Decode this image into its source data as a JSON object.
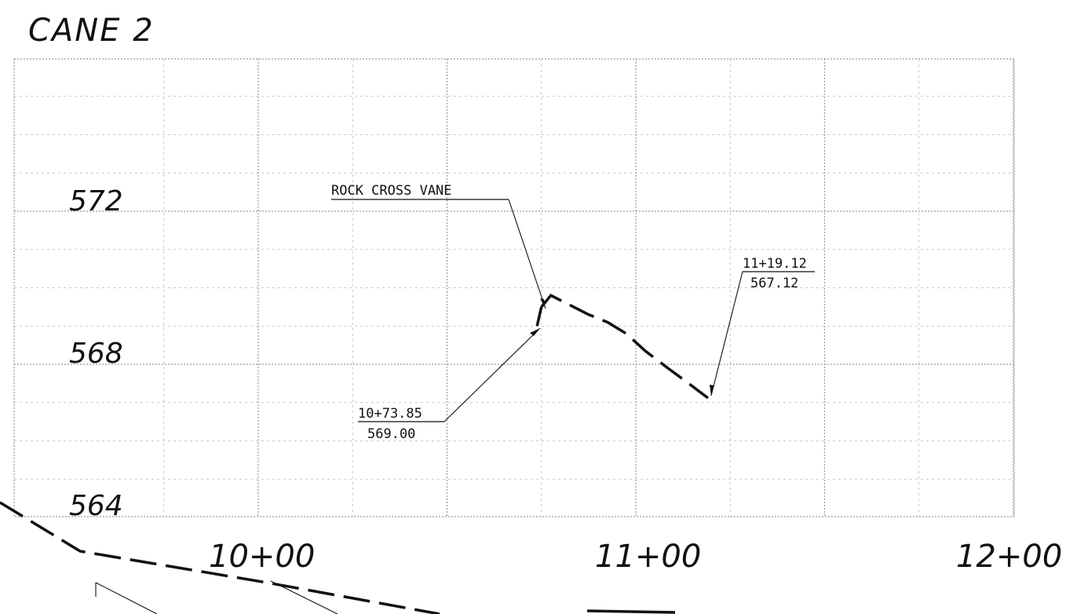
{
  "title": "CANE 2",
  "elevation_labels": [
    "572",
    "568",
    "564"
  ],
  "station_labels": [
    "10+00",
    "11+00",
    "12+00"
  ],
  "annotations": {
    "rock_cross_vane": "ROCK CROSS VANE",
    "point1": {
      "station": "10+73.85",
      "elevation": "569.00"
    },
    "point2": {
      "station": "11+19.12",
      "elevation": "567.12"
    }
  },
  "chart_data": {
    "type": "line",
    "title": "CANE 2",
    "xlabel": "",
    "ylabel": "",
    "x_ticks": [
      "10+00",
      "11+00",
      "12+00"
    ],
    "y_ticks": [
      564,
      568,
      572
    ],
    "grid": true,
    "series": [
      {
        "x": [
          1073.85,
          1075.0,
          1077.5,
          1082.5,
          1087.5,
          1092.5,
          1097.5,
          1102.5,
          1108.5,
          1114.0,
          1119.12
        ],
        "y": [
          569.0,
          569.5,
          569.8,
          569.55,
          569.3,
          569.1,
          568.8,
          568.35,
          567.9,
          567.5,
          567.12
        ]
      }
    ]
  }
}
